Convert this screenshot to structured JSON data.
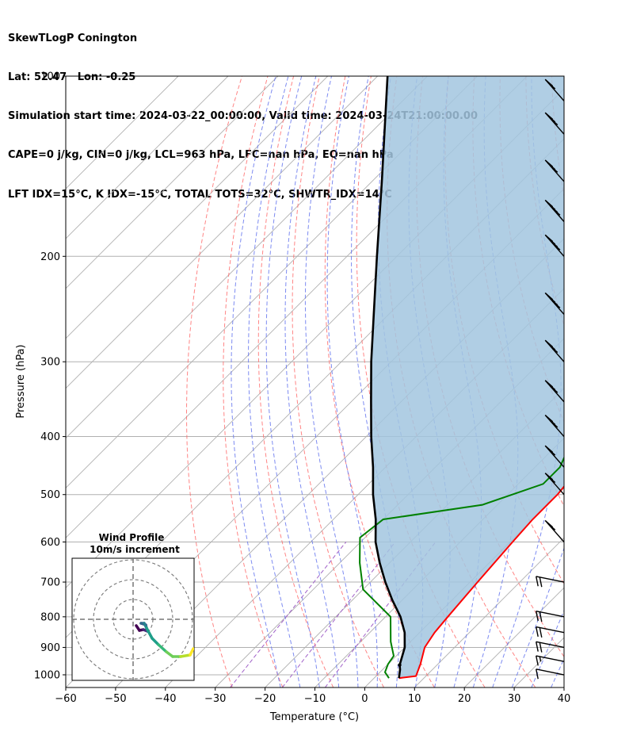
{
  "header": {
    "line1": "SkewTLogP Conington",
    "line2": "Lat: 52.47   Lon: -0.25",
    "line3": "Simulation start time: 2024-03-22_00:00:00, Valid time: 2024-03-24T21:00:00.00",
    "line4": "CAPE=0 j/kg, CIN=0 j/kg, LCL=963 hPa, LFC=nan hPa, EQ=nan hPa",
    "line5": "LFT IDX=15°C, K IDX=-15°C, TOTAL TOTS=32°C, SHWTR_IDX=14°C"
  },
  "chart_data": {
    "type": "line",
    "subtype": "skew-t log-p",
    "xlabel": "Temperature (°C)",
    "ylabel": "Pressure (hPa)",
    "xlim": [
      -60,
      40
    ],
    "ylim": [
      1050,
      100
    ],
    "y_scale": "log",
    "x_ticks": [
      "−60",
      "−50",
      "−40",
      "−30",
      "−20",
      "−10",
      "0",
      "10",
      "20",
      "30",
      "40"
    ],
    "y_ticks": [
      "100",
      "200",
      "300",
      "400",
      "500",
      "600",
      "700",
      "800",
      "900",
      "1000"
    ],
    "grid": true,
    "colors": {
      "temperature": "#ff0000",
      "dewpoint": "#008000",
      "parcel": "#000000",
      "shade": "#a2c6df",
      "dry_adiabat": "#ff6666",
      "moist_adiabat": "#6677ee",
      "mixing_ratio": "#a060c8",
      "isotherm": "#b0b0b0"
    },
    "series": [
      {
        "role": "temperature",
        "points": [
          [
            5,
            1013
          ],
          [
            8,
            1005
          ],
          [
            6.5,
            960
          ],
          [
            4,
            900
          ],
          [
            3,
            850
          ],
          [
            2.5,
            800
          ],
          [
            1.5,
            700
          ],
          [
            0.5,
            600
          ],
          [
            0,
            550
          ],
          [
            0,
            500
          ],
          [
            -1,
            450
          ],
          [
            -2,
            400
          ],
          [
            -3,
            350
          ],
          [
            -5,
            320
          ],
          [
            -6.5,
            300
          ],
          [
            -8,
            280
          ],
          [
            -10,
            250
          ],
          [
            -11,
            220
          ],
          [
            -11,
            200
          ],
          [
            -9,
            190
          ],
          [
            -3,
            170
          ],
          [
            0,
            155
          ],
          [
            1,
            145
          ],
          [
            1,
            130
          ],
          [
            0,
            115
          ],
          [
            -2,
            100
          ]
        ]
      },
      {
        "role": "dewpoint",
        "points": [
          [
            3,
            1013
          ],
          [
            1,
            990
          ],
          [
            0,
            960
          ],
          [
            -0.5,
            930
          ],
          [
            -4,
            880
          ],
          [
            -9,
            800
          ],
          [
            -20,
            720
          ],
          [
            -26,
            650
          ],
          [
            -31,
            590
          ],
          [
            -30,
            550
          ],
          [
            -13,
            520
          ],
          [
            -5,
            480
          ],
          [
            -5,
            450
          ],
          [
            -7,
            420
          ],
          [
            -9,
            390
          ],
          [
            -10,
            370
          ],
          [
            -12,
            340
          ],
          [
            -15,
            310
          ],
          [
            -20,
            270
          ],
          [
            -23,
            250
          ],
          [
            -24,
            220
          ],
          [
            -24,
            200
          ],
          [
            -22,
            180
          ],
          [
            -21.5,
            165
          ],
          [
            -24,
            150
          ],
          [
            -20,
            135
          ],
          [
            -13,
            115
          ],
          [
            -8,
            100
          ]
        ]
      },
      {
        "role": "parcel",
        "points": [
          [
            5,
            1013
          ],
          [
            3.5,
            980
          ],
          [
            2.5,
            963
          ],
          [
            0,
            900
          ],
          [
            -3,
            850
          ],
          [
            -7,
            800
          ],
          [
            -12,
            750
          ],
          [
            -17,
            700
          ],
          [
            -22,
            650
          ],
          [
            -27,
            600
          ],
          [
            -31.5,
            550
          ],
          [
            -37,
            500
          ],
          [
            -42.5,
            450
          ],
          [
            -49,
            400
          ],
          [
            -56,
            350
          ],
          [
            -64,
            300
          ],
          [
            -73,
            250
          ],
          [
            -84,
            200
          ],
          [
            -98,
            150
          ],
          [
            -118,
            100
          ]
        ]
      }
    ],
    "inset": {
      "title": "Wind Profile",
      "subtitle": "10m/s increment",
      "colormap": "viridis"
    },
    "wind_barbs": {
      "note": "wind barbs drawn along right edge",
      "levels_hpa": [
        1000,
        950,
        900,
        850,
        800,
        700,
        600,
        500,
        450,
        400,
        350,
        300,
        250,
        200,
        175,
        150,
        125,
        110
      ],
      "speed_kt": [
        10,
        15,
        20,
        20,
        20,
        20,
        20,
        25,
        25,
        30,
        30,
        35,
        45,
        45,
        40,
        35,
        30,
        25
      ]
    }
  }
}
